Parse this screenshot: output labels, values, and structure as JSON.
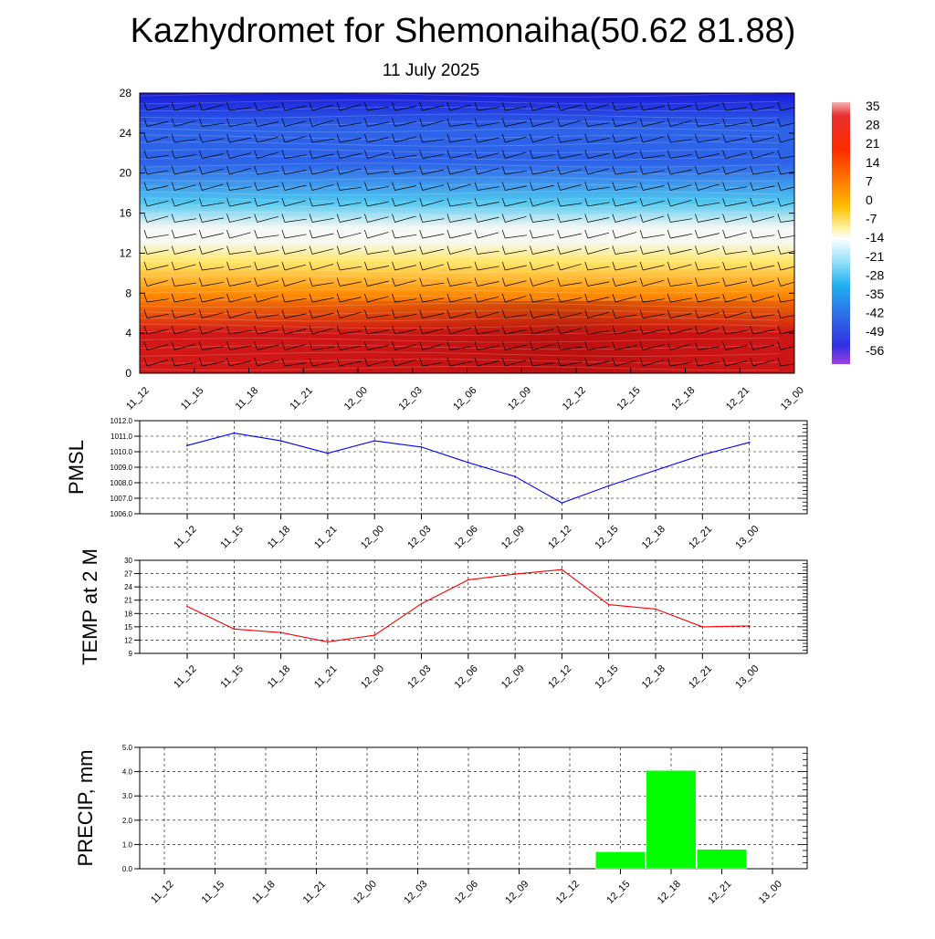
{
  "page": {
    "title": "Kazhydromet for Shemonaiha(50.62 81.88)",
    "date": "11 July 2025"
  },
  "colorbar": {
    "labels": [
      "35",
      "28",
      "21",
      "14",
      "7",
      "0",
      "-7",
      "-14",
      "-21",
      "-28",
      "-35",
      "-42",
      "-49",
      "-56"
    ]
  },
  "chart_data": [
    {
      "type": "heatmap",
      "title": "",
      "x_ticks": [
        "11_12",
        "11_15",
        "11_18",
        "11_21",
        "12_00",
        "12_03",
        "12_06",
        "12_09",
        "12_12",
        "12_15",
        "12_18",
        "12_21",
        "13_00"
      ],
      "y_ticks": [
        0,
        4,
        8,
        12,
        16,
        20,
        24,
        28
      ],
      "ylim": [
        0,
        28
      ],
      "colorbar_range": [
        -56,
        35
      ],
      "colors": {
        "warm_low": "#d41818",
        "orange": "#ff8a00",
        "yellow": "#ffe86a",
        "white_band": "#f6f8f4",
        "cyan": "#4fc7ef",
        "blue": "#2d63e9",
        "deep_blue": "#1a1ad8"
      }
    },
    {
      "type": "line",
      "ylabel": "PMSL",
      "x": [
        "11_12",
        "11_15",
        "11_18",
        "11_21",
        "12_00",
        "12_03",
        "12_06",
        "12_09",
        "12_12",
        "12_15",
        "12_18",
        "12_21",
        "13_00"
      ],
      "values": [
        1010.4,
        1011.2,
        1010.7,
        1009.9,
        1010.7,
        1010.3,
        1009.3,
        1008.4,
        1006.7,
        1007.8,
        1008.8,
        1009.8,
        1010.6
      ],
      "ylim": [
        1006.0,
        1012.0
      ],
      "y_ticks": [
        "1006.0",
        "1007.0",
        "1008.0",
        "1009.0",
        "1010.0",
        "1011.0",
        "1012.0"
      ],
      "color": "#0000ff"
    },
    {
      "type": "line",
      "ylabel": "TEMP at 2 M",
      "x": [
        "11_12",
        "11_15",
        "11_18",
        "11_21",
        "12_00",
        "12_03",
        "12_06",
        "12_09",
        "12_12",
        "12_15",
        "12_18",
        "12_21",
        "13_00"
      ],
      "values": [
        19.6,
        14.5,
        13.7,
        11.6,
        13.1,
        20.2,
        25.6,
        26.9,
        27.9,
        20.0,
        19.0,
        15.0,
        15.2
      ],
      "ylim": [
        9,
        30
      ],
      "y_ticks": [
        "9",
        "12",
        "15",
        "18",
        "21",
        "24",
        "27",
        "30"
      ],
      "color": "#ff0000"
    },
    {
      "type": "bar",
      "ylabel": "PRECIP, mm",
      "x": [
        "11_12",
        "11_15",
        "11_18",
        "11_21",
        "12_00",
        "12_03",
        "12_06",
        "12_09",
        "12_12",
        "12_15",
        "12_18",
        "12_21",
        "13_00"
      ],
      "values": [
        0,
        0,
        0,
        0,
        0,
        0,
        0,
        0,
        0,
        0.7,
        4.05,
        0.8,
        0
      ],
      "ylim": [
        0,
        5.0
      ],
      "y_ticks": [
        "0.0",
        "1.0",
        "2.0",
        "3.0",
        "4.0",
        "5.0"
      ],
      "color": "#00ff00"
    }
  ]
}
